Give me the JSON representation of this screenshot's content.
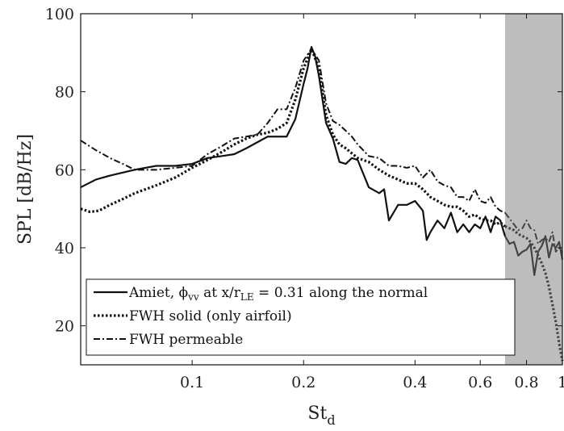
{
  "chart_data": {
    "type": "line",
    "x_scale": "log",
    "xlim": [
      0.05,
      1.0
    ],
    "ylim": [
      10,
      100
    ],
    "xlabel": "St",
    "xlabel_sub": "d",
    "ylabel": "SPL [dB/Hz]",
    "x_ticks": [
      0.1,
      0.2,
      0.4,
      0.6,
      0.8,
      1
    ],
    "x_tick_labels": [
      "0.1",
      "0.2",
      "0.4",
      "0.6",
      "0.8",
      "1"
    ],
    "y_ticks": [
      20,
      40,
      60,
      80,
      100
    ],
    "y_tick_labels": [
      "20",
      "40",
      "60",
      "80",
      "100"
    ],
    "grid": false,
    "legend_position": "bottom-left",
    "shaded_region": {
      "x_from": 0.7,
      "x_to": 1.0,
      "color": "#bdbdbd"
    },
    "legend": [
      {
        "label": "Amiet, ϕ",
        "label_sub": "vv",
        "label_mid": " at x/r",
        "label_sub2": "LE",
        "label_end": " = 0.31 along the normal",
        "style": "solid"
      },
      {
        "label": "FWH solid (only airfoil)",
        "style": "dotted"
      },
      {
        "label": "FWH permeable",
        "style": "dashdot"
      }
    ],
    "series": [
      {
        "style": "solid",
        "x": [
          0.05,
          0.055,
          0.06,
          0.07,
          0.08,
          0.09,
          0.1,
          0.11,
          0.12,
          0.13,
          0.14,
          0.16,
          0.18,
          0.19,
          0.2,
          0.205,
          0.21,
          0.215,
          0.22,
          0.23,
          0.24,
          0.25,
          0.26,
          0.27,
          0.28,
          0.3,
          0.32,
          0.33,
          0.34,
          0.36,
          0.37,
          0.38,
          0.4,
          0.42,
          0.43,
          0.44,
          0.46,
          0.48,
          0.5,
          0.52,
          0.54,
          0.56,
          0.58,
          0.6,
          0.62,
          0.64,
          0.66,
          0.68,
          0.7
        ],
        "y": [
          55.5,
          57.5,
          58.5,
          60,
          61,
          61,
          61.5,
          63,
          63.5,
          64,
          65.5,
          68.5,
          68.5,
          73,
          82,
          86,
          91.5,
          89,
          84,
          72,
          68,
          62,
          61.5,
          63,
          62.5,
          55.5,
          54,
          55,
          47,
          51,
          51,
          51,
          52,
          49.5,
          42,
          44,
          47,
          45,
          49,
          44,
          46,
          44,
          46,
          45,
          48,
          44,
          48,
          47,
          43
        ]
      },
      {
        "style": "dotted",
        "x": [
          0.05,
          0.053,
          0.056,
          0.06,
          0.065,
          0.07,
          0.08,
          0.09,
          0.1,
          0.11,
          0.12,
          0.13,
          0.14,
          0.15,
          0.16,
          0.17,
          0.18,
          0.19,
          0.2,
          0.21,
          0.22,
          0.23,
          0.24,
          0.25,
          0.26,
          0.28,
          0.3,
          0.32,
          0.34,
          0.36,
          0.38,
          0.4,
          0.42,
          0.44,
          0.46,
          0.48,
          0.5,
          0.52,
          0.54,
          0.56,
          0.58,
          0.6,
          0.62,
          0.64,
          0.66,
          0.68,
          0.7
        ],
        "y": [
          50,
          49.2,
          49.5,
          51,
          52.5,
          54,
          56,
          58,
          60.5,
          62.5,
          64.5,
          66.5,
          68,
          69,
          69.5,
          70.5,
          72,
          78,
          86,
          91,
          86,
          74,
          69,
          66.5,
          65.5,
          63,
          62,
          60,
          58.5,
          57.5,
          56.5,
          56.5,
          55,
          53,
          52,
          51,
          50.5,
          50.5,
          49.5,
          48,
          48.5,
          47.5,
          47,
          47,
          46,
          46.5,
          45.5
        ]
      },
      {
        "style": "dashdot",
        "x": [
          0.05,
          0.055,
          0.06,
          0.065,
          0.07,
          0.08,
          0.09,
          0.1,
          0.11,
          0.12,
          0.13,
          0.14,
          0.15,
          0.16,
          0.17,
          0.18,
          0.19,
          0.2,
          0.21,
          0.22,
          0.23,
          0.24,
          0.25,
          0.26,
          0.27,
          0.28,
          0.3,
          0.32,
          0.34,
          0.36,
          0.38,
          0.4,
          0.42,
          0.44,
          0.46,
          0.48,
          0.5,
          0.52,
          0.54,
          0.56,
          0.58,
          0.6,
          0.62,
          0.64,
          0.66,
          0.68,
          0.7
        ],
        "y": [
          67.5,
          65,
          63,
          61.5,
          60,
          60,
          60.5,
          61,
          64,
          66,
          68,
          68.5,
          69,
          72,
          75.5,
          75.5,
          81,
          88,
          91,
          88,
          77,
          72.5,
          71.5,
          70,
          68.5,
          66.5,
          63.5,
          63,
          61,
          61,
          60.5,
          61,
          58,
          60,
          57,
          56,
          55.5,
          53,
          53,
          52,
          55,
          52,
          51.5,
          53,
          50.5,
          49.5,
          49
        ]
      }
    ],
    "shaded_series": [
      {
        "style": "solid",
        "x": [
          0.7,
          0.72,
          0.74,
          0.76,
          0.78,
          0.8,
          0.82,
          0.84,
          0.86,
          0.88,
          0.9,
          0.92,
          0.94,
          0.96,
          0.98,
          1.0
        ],
        "y": [
          43,
          41,
          41.5,
          38,
          39,
          39.5,
          41,
          33,
          39,
          40.5,
          43,
          37.5,
          41,
          40,
          41.5,
          37
        ]
      },
      {
        "style": "dotted",
        "x": [
          0.7,
          0.72,
          0.74,
          0.76,
          0.78,
          0.8,
          0.82,
          0.84,
          0.86,
          0.88,
          0.9,
          0.92,
          0.94,
          0.96,
          0.98,
          1.0
        ],
        "y": [
          45.5,
          45,
          44.5,
          43.5,
          43,
          42.5,
          41.5,
          40,
          38,
          36,
          33.5,
          30,
          25.5,
          21,
          15.5,
          11
        ]
      },
      {
        "style": "dashdot",
        "x": [
          0.7,
          0.72,
          0.74,
          0.76,
          0.78,
          0.8,
          0.82,
          0.84,
          0.86,
          0.88,
          0.9,
          0.92,
          0.94,
          0.96,
          0.98,
          1.0
        ],
        "y": [
          49,
          47.5,
          46,
          44.5,
          45,
          47,
          45,
          44.5,
          41,
          42,
          42.5,
          41.5,
          44,
          39,
          40,
          39
        ]
      }
    ]
  }
}
